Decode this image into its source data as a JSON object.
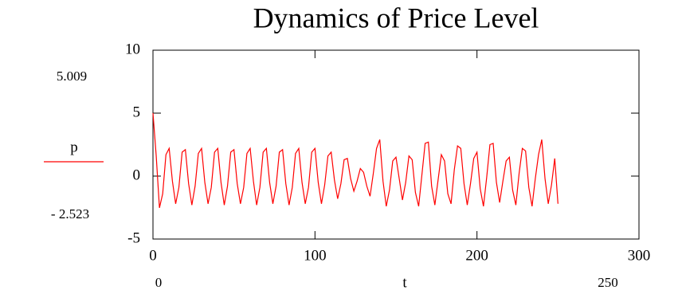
{
  "chart_data": {
    "type": "line",
    "title": "Dynamics of Price Level",
    "x_label": "t",
    "x": [
      0,
      2,
      4,
      6,
      8,
      10,
      12,
      14,
      16,
      18,
      20,
      22,
      24,
      26,
      28,
      30,
      32,
      34,
      36,
      38,
      40,
      42,
      44,
      46,
      48,
      50,
      52,
      54,
      56,
      58,
      60,
      62,
      64,
      66,
      68,
      70,
      72,
      74,
      76,
      78,
      80,
      82,
      84,
      86,
      88,
      90,
      92,
      94,
      96,
      98,
      100,
      102,
      104,
      106,
      108,
      110,
      112,
      114,
      116,
      118,
      120,
      122,
      124,
      126,
      128,
      130,
      132,
      134,
      136,
      138,
      140,
      142,
      144,
      146,
      148,
      150,
      152,
      154,
      156,
      158,
      160,
      162,
      164,
      166,
      168,
      170,
      172,
      174,
      176,
      178,
      180,
      182,
      184,
      186,
      188,
      190,
      192,
      194,
      196,
      198,
      200,
      202,
      204,
      206,
      208,
      210,
      212,
      214,
      216,
      218,
      220,
      222,
      224,
      226,
      228,
      230,
      232,
      234,
      236,
      238,
      240,
      242,
      244,
      246,
      248,
      250
    ],
    "series": [
      {
        "name": "p",
        "color": "#ff0000",
        "values": [
          5.009,
          1.6,
          -2.523,
          -1.4,
          1.7,
          2.2,
          -0.4,
          -2.2,
          -0.9,
          1.9,
          2.1,
          -0.6,
          -2.3,
          -0.8,
          1.8,
          2.2,
          -0.5,
          -2.2,
          -0.9,
          1.9,
          2.2,
          -0.5,
          -2.3,
          -0.8,
          1.9,
          2.1,
          -0.6,
          -2.2,
          -0.9,
          1.8,
          2.2,
          -0.4,
          -2.3,
          -0.9,
          1.9,
          2.2,
          -0.5,
          -2.2,
          -0.8,
          1.9,
          2.1,
          -0.6,
          -2.3,
          -0.9,
          1.8,
          2.2,
          -0.5,
          -2.2,
          -0.9,
          1.9,
          2.2,
          -0.5,
          -2.2,
          -0.7,
          1.6,
          1.9,
          -0.3,
          -1.8,
          -0.6,
          1.3,
          1.4,
          -0.2,
          -1.2,
          -0.4,
          0.6,
          0.3,
          -0.8,
          -1.6,
          0.2,
          2.2,
          2.9,
          -0.4,
          -2.4,
          -1.1,
          1.2,
          1.5,
          -0.2,
          -1.9,
          -0.5,
          1.6,
          1.3,
          -1.3,
          -2.4,
          0.1,
          2.6,
          2.7,
          -0.8,
          -2.3,
          -0.3,
          1.7,
          1.2,
          -1.4,
          -2.2,
          0.5,
          2.4,
          2.2,
          -0.6,
          -2.3,
          -0.6,
          1.4,
          1.9,
          -1.0,
          -2.4,
          -0.1,
          2.5,
          2.6,
          -0.5,
          -2.1,
          -0.4,
          1.2,
          1.5,
          -1.1,
          -2.3,
          0.2,
          2.2,
          2.0,
          -0.9,
          -2.4,
          -0.2,
          1.7,
          2.9,
          -0.2,
          -2.2,
          -0.7,
          1.4,
          -2.2
        ]
      }
    ],
    "xlim": [
      0,
      300
    ],
    "xticks": [
      0,
      100,
      200,
      300
    ],
    "ylim": [
      -5,
      10
    ],
    "yticks": [
      -5,
      0,
      5,
      10
    ],
    "y_range": [
      {
        "value": -2.523,
        "label": "- 2.523"
      },
      {
        "value": 5.009,
        "label": "5.009"
      }
    ],
    "x_range": [
      0,
      250
    ]
  }
}
